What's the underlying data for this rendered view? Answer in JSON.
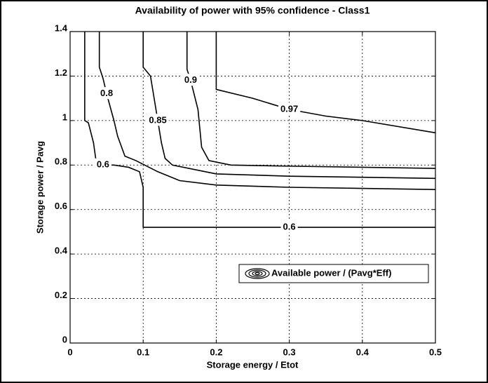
{
  "chart_data": {
    "type": "contour",
    "title": "Availability of power with 95% confidence - Class1",
    "xlabel": "Storage energy / Etot",
    "ylabel": "Storage power / Pavg",
    "xlim": [
      0,
      0.5
    ],
    "ylim": [
      0,
      1.4
    ],
    "xticks": [
      0,
      0.1,
      0.2,
      0.3,
      0.4,
      0.5
    ],
    "yticks": [
      0,
      0.2,
      0.4,
      0.6,
      0.8,
      1,
      1.2,
      1.4
    ],
    "grid": true,
    "color": "#000000",
    "legend": {
      "label": "Available power / (Pavg*Eff)",
      "location": "east"
    },
    "contours": [
      {
        "level": 0.6,
        "x": [
          0.02,
          0.02,
          0.025,
          0.032,
          0.035,
          0.045,
          0.06,
          0.08,
          0.095,
          0.1,
          0.1,
          0.2,
          0.3,
          0.4,
          0.5
        ],
        "y": [
          1.4,
          1.0,
          0.99,
          0.9,
          0.83,
          0.8,
          0.8,
          0.79,
          0.77,
          0.7,
          0.52,
          0.52,
          0.52,
          0.52,
          0.52
        ]
      },
      {
        "level": 0.8,
        "x": [
          0.04,
          0.04,
          0.045,
          0.05,
          0.06,
          0.065,
          0.075,
          0.09,
          0.12,
          0.15,
          0.2,
          0.3,
          0.5
        ],
        "y": [
          1.4,
          1.24,
          1.19,
          1.12,
          1.0,
          0.93,
          0.84,
          0.82,
          0.77,
          0.73,
          0.71,
          0.7,
          0.69
        ]
      },
      {
        "level": 0.85,
        "x": [
          0.1,
          0.1,
          0.11,
          0.115,
          0.12,
          0.125,
          0.13,
          0.14,
          0.2,
          0.3,
          0.5
        ],
        "y": [
          1.4,
          1.24,
          1.2,
          1.1,
          1.0,
          0.9,
          0.83,
          0.8,
          0.76,
          0.75,
          0.74
        ]
      },
      {
        "level": 0.9,
        "x": [
          0.16,
          0.16,
          0.165,
          0.175,
          0.18,
          0.19,
          0.22,
          0.3,
          0.5
        ],
        "y": [
          1.4,
          1.23,
          1.18,
          1.05,
          0.88,
          0.82,
          0.8,
          0.795,
          0.785
        ]
      },
      {
        "level": 0.97,
        "x": [
          0.2,
          0.2,
          0.25,
          0.3,
          0.35,
          0.4,
          0.5
        ],
        "y": [
          1.4,
          1.14,
          1.1,
          1.05,
          1.02,
          1.0,
          0.945
        ]
      }
    ]
  }
}
